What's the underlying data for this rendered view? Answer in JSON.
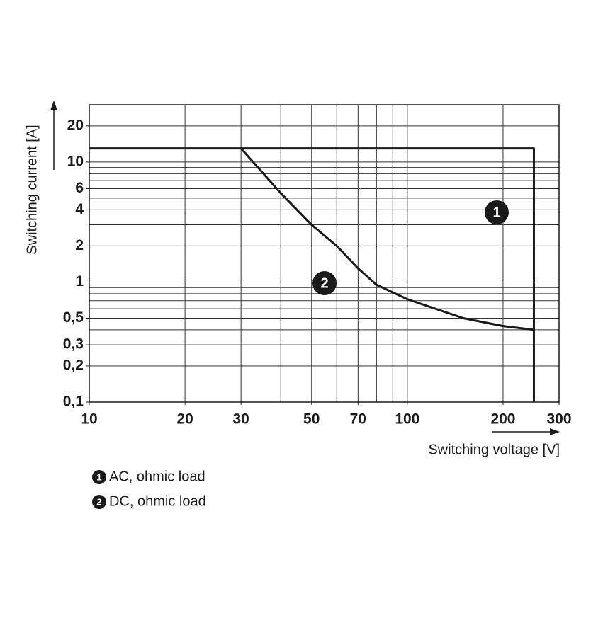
{
  "chart_data": {
    "type": "line",
    "x_label": "Switching voltage [V]",
    "y_label": "Switching current [A]",
    "log_x": true,
    "log_y": true,
    "xlim": [
      10,
      300
    ],
    "ylim": [
      0.1,
      30
    ],
    "xticks": [
      10,
      20,
      30,
      50,
      70,
      100,
      200,
      300
    ],
    "yticks": [
      {
        "value": 0.1,
        "label": "0,1"
      },
      {
        "value": 0.2,
        "label": "0,2"
      },
      {
        "value": 0.3,
        "label": "0,3"
      },
      {
        "value": 0.5,
        "label": "0,5"
      },
      1,
      2,
      4,
      6,
      10,
      20
    ],
    "xgrid": [
      20,
      30,
      40,
      50,
      60,
      70,
      80,
      90,
      100,
      200
    ],
    "ygrid": [
      0.2,
      0.3,
      0.4,
      0.5,
      0.6,
      0.7,
      0.8,
      0.9,
      1,
      2,
      3,
      4,
      5,
      6,
      7,
      8,
      9,
      10,
      20
    ],
    "grid": true,
    "series": [
      {
        "name": "AC, ohmic load",
        "marker": "1",
        "color": "#1a1a1a",
        "x": [
          10,
          250,
          250
        ],
        "values": [
          13,
          13,
          0.1
        ]
      },
      {
        "name": "DC, ohmic load",
        "marker": "2",
        "color": "#1a1a1a",
        "x": [
          30,
          40,
          50,
          60,
          70,
          80,
          100,
          150,
          200,
          250
        ],
        "values": [
          13,
          5.5,
          3,
          2,
          1.3,
          0.95,
          0.72,
          0.5,
          0.43,
          0.4
        ]
      }
    ]
  }
}
